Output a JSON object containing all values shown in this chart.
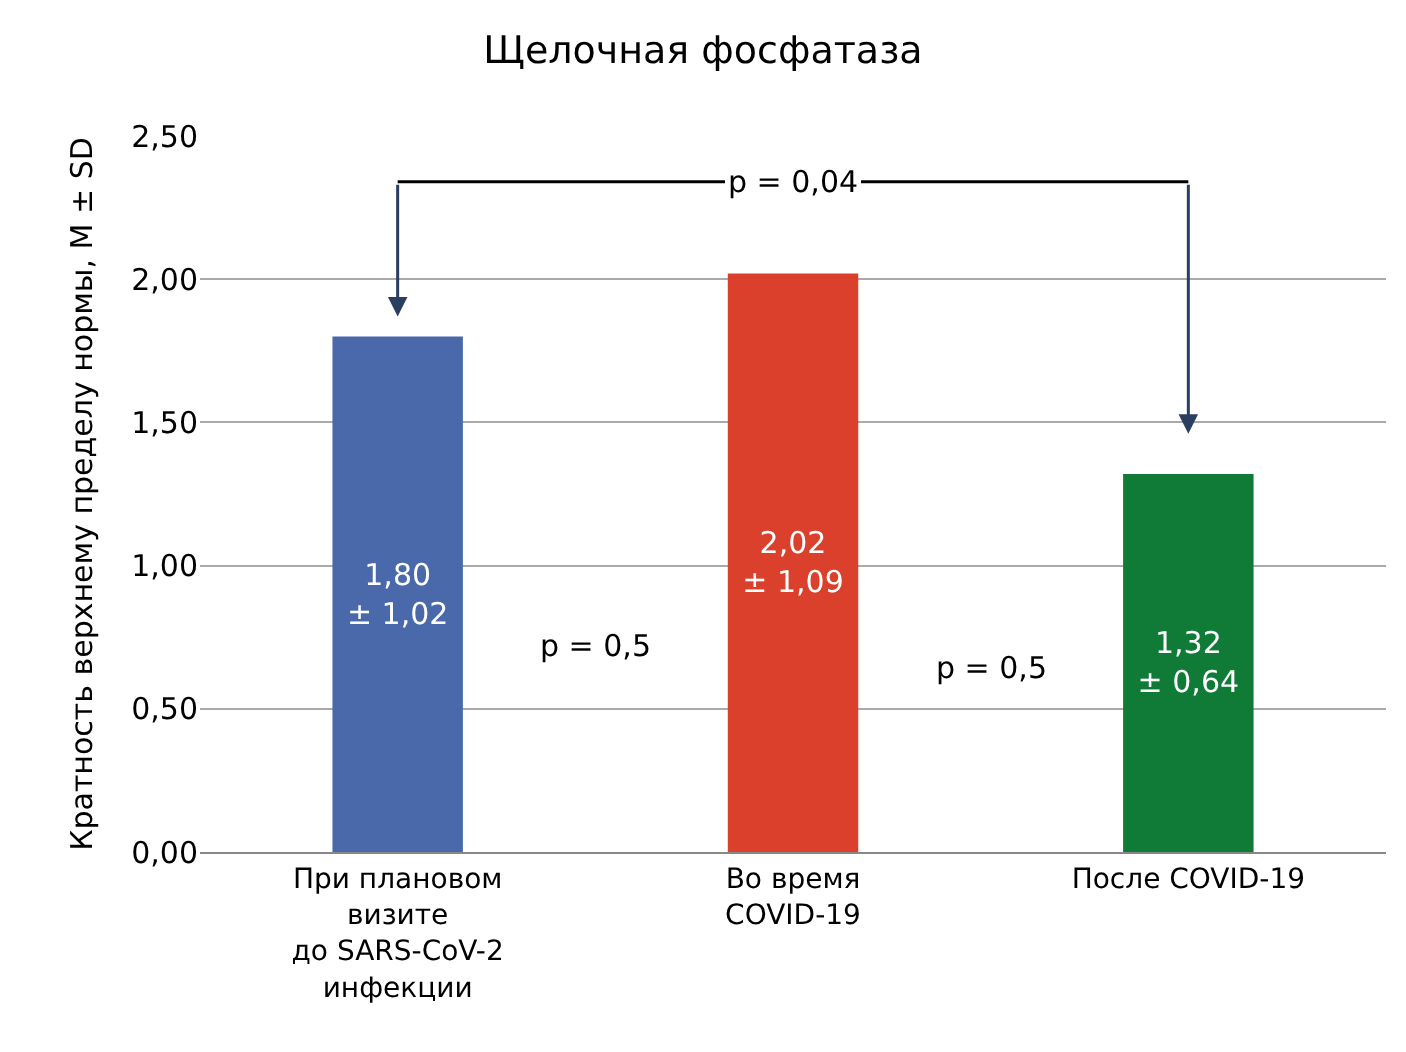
{
  "chart_data": {
    "type": "bar",
    "title": "Щелочная фосфатаза",
    "ylabel": "Кратность верхнему пределу нормы, M ± SD",
    "categories": [
      "При плановом\nвизите\nдо SARS-CoV-2\nинфекции",
      "Во время\nCOVID-19",
      "После COVID-19"
    ],
    "values": [
      1.8,
      2.02,
      1.32
    ],
    "colors": [
      "#4a69aa",
      "#db402c",
      "#0f7b37"
    ],
    "value_labels": [
      "1,80\n± 1,02",
      "2,02\n± 1,09",
      "1,32\n± 0,64"
    ],
    "ylim": [
      0,
      2.5
    ],
    "yticks": [
      {
        "value": 0,
        "label": "0,00"
      },
      {
        "value": 0.5,
        "label": "0,50"
      },
      {
        "value": 1,
        "label": "1,00"
      },
      {
        "value": 1.5,
        "label": "1,50"
      },
      {
        "value": 2,
        "label": "2,00"
      },
      {
        "value": 2.5,
        "label": "2,50"
      }
    ],
    "grid": "y",
    "annotations": [
      "p = 0,04",
      "p = 0,5",
      "p = 0,5"
    ]
  }
}
